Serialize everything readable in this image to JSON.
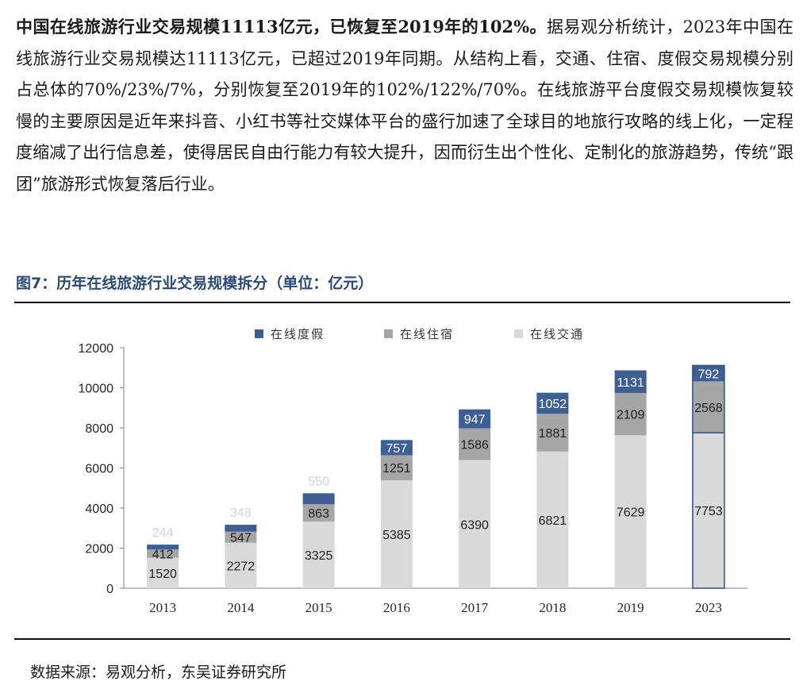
{
  "paragraph": {
    "lead": "中国在线旅游行业交易规模11113亿元，已恢复至2019年的102%。",
    "body": "据易观分析统计，2023年中国在线旅游行业交易规模达11113亿元，已超过2019年同期。从结构上看，交通、住宿、度假交易规模分别占总体的70%/23%/7%，分别恢复至2019年的102%/122%/70%。在线旅游平台度假交易规模恢复较慢的主要原因是近年来抖音、小红书等社交媒体平台的盛行加速了全球目的地旅行攻略的线上化，一定程度缩减了出行信息差，使得居民自由行能力有较大提升，因而衍生出个性化、定制化的旅游趋势，传统“跟团”旅游形式恢复落后行业。"
  },
  "caption": "图7：历年在线旅游行业交易规模拆分（单位：亿元）",
  "source": "数据来源：易观分析，东吴证券研究所",
  "chart_data": {
    "type": "bar",
    "stacked": true,
    "categories": [
      "2013",
      "2014",
      "2015",
      "2016",
      "2017",
      "2018",
      "2019",
      "2023"
    ],
    "series": [
      {
        "name": "在线交通",
        "values": [
          1520,
          2272,
          3325,
          5385,
          6390,
          6821,
          7629,
          7753
        ],
        "color": "#d9d9d9"
      },
      {
        "name": "在线住宿",
        "values": [
          412,
          547,
          863,
          1251,
          1586,
          1881,
          2109,
          2568
        ],
        "color": "#a6a6a6"
      },
      {
        "name": "在线度假",
        "values": [
          244,
          348,
          550,
          757,
          947,
          1052,
          1131,
          792
        ],
        "color": "#3e5f94"
      }
    ],
    "legend_order": [
      "在线度假",
      "在线住宿",
      "在线交通"
    ],
    "legend_position": "top",
    "ylim": [
      0,
      12000
    ],
    "yticks": [
      0,
      2000,
      4000,
      6000,
      8000,
      10000,
      12000
    ],
    "highlighted_category": "2023",
    "grid": false
  }
}
